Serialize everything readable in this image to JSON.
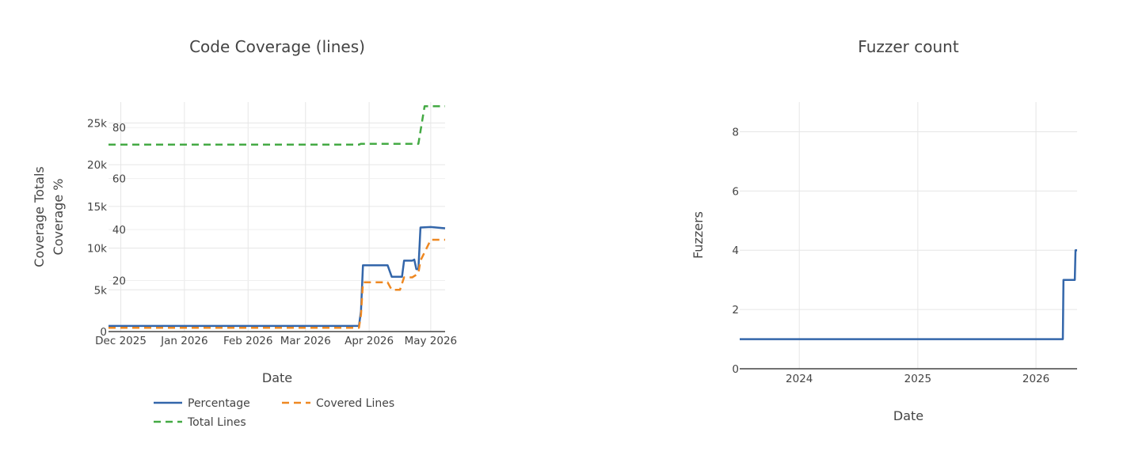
{
  "chart_data": [
    {
      "type": "line",
      "title": "Code Coverage (lines)",
      "xlabel": "Date",
      "x_type": "date",
      "xlim": [
        "2025-11-25",
        "2026-05-08"
      ],
      "x_ticks": [
        "2025-12-01",
        "2026-01-01",
        "2026-02-01",
        "2026-03-01",
        "2026-04-01",
        "2026-05-01"
      ],
      "x_tick_labels": [
        "Dec 2025",
        "Jan 2026",
        "Feb 2026",
        "Mar 2026",
        "Apr 2026",
        "May 2026"
      ],
      "grid": true,
      "legend_position": "bottom",
      "y_axes": [
        {
          "id": "totals",
          "label": "Coverage Totals",
          "ylim": [
            0,
            27500
          ],
          "ticks": [
            0,
            5000,
            10000,
            15000,
            20000,
            25000
          ],
          "tick_labels": [
            "0",
            "5k",
            "10k",
            "15k",
            "20k",
            "25k"
          ]
        },
        {
          "id": "percent",
          "label": "Coverage %",
          "ylim": [
            0,
            90
          ],
          "ticks": [
            20,
            40,
            60,
            80
          ],
          "tick_labels": [
            "20",
            "40",
            "60",
            "80"
          ]
        }
      ],
      "series": [
        {
          "name": "Percentage",
          "axis": "percent",
          "color": "#3366aa",
          "dash": "solid",
          "x": [
            "2025-11-25",
            "2026-03-27",
            "2026-03-28",
            "2026-03-29",
            "2026-04-10",
            "2026-04-12",
            "2026-04-17",
            "2026-04-18",
            "2026-04-22",
            "2026-04-23",
            "2026-04-24",
            "2026-04-25",
            "2026-04-26",
            "2026-05-01",
            "2026-05-08"
          ],
          "y": [
            2.2,
            2.2,
            8,
            26,
            26,
            21.5,
            21.5,
            27.8,
            27.8,
            28.2,
            24.5,
            24.5,
            40.8,
            41,
            40.5
          ]
        },
        {
          "name": "Covered Lines",
          "axis": "totals",
          "color": "#ee8822",
          "dash": "dash",
          "x": [
            "2025-11-25",
            "2026-03-27",
            "2026-03-28",
            "2026-03-29",
            "2026-04-10",
            "2026-04-12",
            "2026-04-16",
            "2026-04-18",
            "2026-04-22",
            "2026-04-24",
            "2026-04-25",
            "2026-04-26",
            "2026-05-01",
            "2026-05-08"
          ],
          "y": [
            450,
            450,
            2000,
            5900,
            5900,
            5000,
            5000,
            6500,
            6500,
            6800,
            7000,
            8500,
            11000,
            11000
          ]
        },
        {
          "name": "Total Lines",
          "axis": "totals",
          "color": "#44aa44",
          "dash": "dash",
          "x": [
            "2025-11-25",
            "2026-03-27",
            "2026-03-28",
            "2026-04-25",
            "2026-04-26",
            "2026-04-28",
            "2026-05-08"
          ],
          "y": [
            22400,
            22400,
            22500,
            22500,
            24000,
            27000,
            27000
          ]
        }
      ]
    },
    {
      "type": "line",
      "title": "Fuzzer count",
      "xlabel": "Date",
      "ylabel": "Fuzzers",
      "x_type": "date",
      "xlim": [
        "2023-07-01",
        "2026-05-08"
      ],
      "x_ticks": [
        "2024-01-01",
        "2025-01-01",
        "2026-01-01"
      ],
      "x_tick_labels": [
        "2024",
        "2025",
        "2026"
      ],
      "ylim": [
        0,
        9
      ],
      "y_ticks": [
        0,
        2,
        4,
        6,
        8
      ],
      "y_tick_labels": [
        "0",
        "2",
        "4",
        "6",
        "8"
      ],
      "grid": true,
      "series": [
        {
          "color": "#3366aa",
          "dash": "solid",
          "x": [
            "2023-07-01",
            "2026-03-25",
            "2026-03-27",
            "2026-05-01",
            "2026-05-03",
            "2026-05-08"
          ],
          "y": [
            1,
            1,
            3,
            3,
            4,
            4
          ]
        }
      ]
    }
  ]
}
